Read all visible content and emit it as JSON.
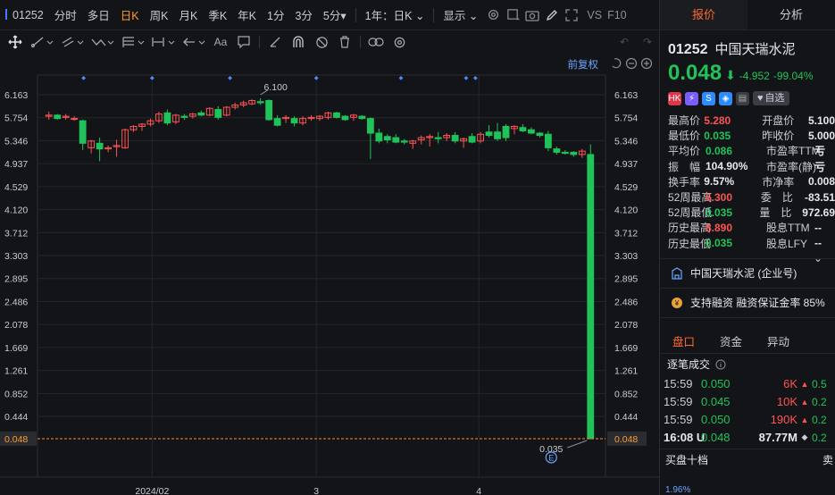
{
  "toolbar": {
    "code": "01252",
    "periods": [
      "分时",
      "多日",
      "日K",
      "周K",
      "月K",
      "季K",
      "年K",
      "1分",
      "3分",
      "5分▾"
    ],
    "active_period": "日K",
    "range": "1年：日K",
    "display": "显示",
    "vs": "VS",
    "f10": "F10"
  },
  "drawing_toolbar": {
    "icons": [
      "crosshair-icon",
      "line-tool-icon",
      "channel-tool-icon",
      "wave-tool-icon",
      "fib-tool-icon",
      "measure-tool-icon",
      "arrow-tool-icon",
      "text-tool-icon",
      "note-tool-icon",
      "ruler-tool-icon",
      "magnet-icon",
      "hide-icon",
      "trash-icon",
      "link-icon",
      "settings-icon"
    ],
    "text_tool_label": "Aa"
  },
  "chart": {
    "adjust_label": "前复权",
    "y_ticks": [
      "6.163",
      "5.754",
      "5.346",
      "4.937",
      "4.529",
      "4.120",
      "3.712",
      "3.303",
      "2.895",
      "2.486",
      "2.078",
      "1.669",
      "1.261",
      "0.852",
      "0.444"
    ],
    "current_price_label": "0.048",
    "max_label": "6.100",
    "min_label": "0.035",
    "x_labels": [
      "2024/02",
      "3",
      "4"
    ],
    "event_marker": "E",
    "colors": {
      "up": "#ff5353",
      "down": "#1fc35a",
      "grid": "#24262b",
      "axis_text": "#c9cdd4",
      "price_line": "#ff8a3a"
    }
  },
  "chart_data": {
    "type": "candlestick",
    "ylim": [
      0.0,
      6.35
    ],
    "y_ticks": [
      6.163,
      5.754,
      5.346,
      4.937,
      4.529,
      4.12,
      3.712,
      3.303,
      2.895,
      2.486,
      2.078,
      1.669,
      1.261,
      0.852,
      0.444
    ],
    "max": 6.1,
    "min": 0.035,
    "last": 0.048,
    "x_labels": [
      "2024/02",
      "3",
      "4"
    ],
    "candles": [
      {
        "o": 5.78,
        "h": 5.86,
        "l": 5.72,
        "c": 5.8
      },
      {
        "o": 5.8,
        "h": 5.82,
        "l": 5.72,
        "c": 5.74
      },
      {
        "o": 5.76,
        "h": 5.82,
        "l": 5.72,
        "c": 5.78
      },
      {
        "o": 5.74,
        "h": 5.78,
        "l": 5.7,
        "c": 5.74
      },
      {
        "o": 5.7,
        "h": 5.72,
        "l": 5.18,
        "c": 5.3
      },
      {
        "o": 5.22,
        "h": 5.36,
        "l": 5.12,
        "c": 5.34
      },
      {
        "o": 5.3,
        "h": 5.4,
        "l": 4.98,
        "c": 5.2
      },
      {
        "o": 5.2,
        "h": 5.26,
        "l": 5.14,
        "c": 5.22
      },
      {
        "o": 5.24,
        "h": 5.36,
        "l": 5.06,
        "c": 5.26
      },
      {
        "o": 5.22,
        "h": 5.56,
        "l": 5.2,
        "c": 5.54
      },
      {
        "o": 5.54,
        "h": 5.62,
        "l": 5.5,
        "c": 5.6
      },
      {
        "o": 5.6,
        "h": 5.66,
        "l": 5.52,
        "c": 5.64
      },
      {
        "o": 5.64,
        "h": 5.74,
        "l": 5.6,
        "c": 5.7
      },
      {
        "o": 5.7,
        "h": 5.86,
        "l": 5.66,
        "c": 5.82
      },
      {
        "o": 5.84,
        "h": 5.9,
        "l": 5.62,
        "c": 5.66
      },
      {
        "o": 5.68,
        "h": 5.82,
        "l": 5.64,
        "c": 5.8
      },
      {
        "o": 5.78,
        "h": 5.82,
        "l": 5.72,
        "c": 5.76
      },
      {
        "o": 5.78,
        "h": 5.84,
        "l": 5.74,
        "c": 5.82
      },
      {
        "o": 5.84,
        "h": 5.88,
        "l": 5.78,
        "c": 5.8
      },
      {
        "o": 5.8,
        "h": 5.94,
        "l": 5.78,
        "c": 5.92
      },
      {
        "o": 5.9,
        "h": 5.96,
        "l": 5.72,
        "c": 5.76
      },
      {
        "o": 5.8,
        "h": 5.96,
        "l": 5.78,
        "c": 5.94
      },
      {
        "o": 5.94,
        "h": 6.02,
        "l": 5.9,
        "c": 5.98
      },
      {
        "o": 5.98,
        "h": 6.06,
        "l": 5.94,
        "c": 6.02
      },
      {
        "o": 6.0,
        "h": 6.08,
        "l": 5.98,
        "c": 6.06
      },
      {
        "o": 6.04,
        "h": 6.1,
        "l": 5.98,
        "c": 6.02
      },
      {
        "o": 6.06,
        "h": 6.08,
        "l": 5.7,
        "c": 5.72
      },
      {
        "o": 5.74,
        "h": 5.8,
        "l": 5.6,
        "c": 5.62
      },
      {
        "o": 5.74,
        "h": 5.8,
        "l": 5.66,
        "c": 5.76
      },
      {
        "o": 5.74,
        "h": 5.78,
        "l": 5.6,
        "c": 5.66
      },
      {
        "o": 5.66,
        "h": 5.78,
        "l": 5.62,
        "c": 5.74
      },
      {
        "o": 5.74,
        "h": 5.8,
        "l": 5.7,
        "c": 5.76
      },
      {
        "o": 5.74,
        "h": 5.8,
        "l": 5.7,
        "c": 5.78
      },
      {
        "o": 5.76,
        "h": 5.86,
        "l": 5.72,
        "c": 5.84
      },
      {
        "o": 5.84,
        "h": 5.86,
        "l": 5.74,
        "c": 5.76
      },
      {
        "o": 5.78,
        "h": 5.8,
        "l": 5.7,
        "c": 5.72
      },
      {
        "o": 5.76,
        "h": 5.82,
        "l": 5.7,
        "c": 5.8
      },
      {
        "o": 5.78,
        "h": 5.8,
        "l": 5.72,
        "c": 5.74
      },
      {
        "o": 5.74,
        "h": 5.76,
        "l": 5.02,
        "c": 5.48
      },
      {
        "o": 5.48,
        "h": 5.56,
        "l": 5.3,
        "c": 5.34
      },
      {
        "o": 5.42,
        "h": 5.46,
        "l": 5.3,
        "c": 5.36
      },
      {
        "o": 5.4,
        "h": 5.46,
        "l": 5.3,
        "c": 5.32
      },
      {
        "o": 5.34,
        "h": 5.38,
        "l": 5.28,
        "c": 5.32
      },
      {
        "o": 5.3,
        "h": 5.36,
        "l": 5.2,
        "c": 5.34
      },
      {
        "o": 5.36,
        "h": 5.44,
        "l": 5.28,
        "c": 5.4
      },
      {
        "o": 5.4,
        "h": 5.46,
        "l": 5.24,
        "c": 5.42
      },
      {
        "o": 5.4,
        "h": 5.5,
        "l": 5.3,
        "c": 5.38
      },
      {
        "o": 5.4,
        "h": 5.48,
        "l": 5.34,
        "c": 5.44
      },
      {
        "o": 5.44,
        "h": 5.5,
        "l": 5.3,
        "c": 5.34
      },
      {
        "o": 5.34,
        "h": 5.4,
        "l": 5.22,
        "c": 5.38
      },
      {
        "o": 5.42,
        "h": 5.48,
        "l": 5.3,
        "c": 5.32
      },
      {
        "o": 5.34,
        "h": 5.5,
        "l": 5.3,
        "c": 5.46
      },
      {
        "o": 5.5,
        "h": 5.62,
        "l": 5.4,
        "c": 5.44
      },
      {
        "o": 5.5,
        "h": 5.66,
        "l": 5.34,
        "c": 5.38
      },
      {
        "o": 5.6,
        "h": 5.64,
        "l": 5.34,
        "c": 5.4
      },
      {
        "o": 5.56,
        "h": 5.62,
        "l": 5.46,
        "c": 5.6
      },
      {
        "o": 5.58,
        "h": 5.64,
        "l": 5.5,
        "c": 5.52
      },
      {
        "o": 5.54,
        "h": 5.58,
        "l": 5.46,
        "c": 5.48
      },
      {
        "o": 5.48,
        "h": 5.5,
        "l": 5.4,
        "c": 5.44
      },
      {
        "o": 5.46,
        "h": 5.52,
        "l": 5.16,
        "c": 5.22
      },
      {
        "o": 5.2,
        "h": 5.24,
        "l": 5.1,
        "c": 5.14
      },
      {
        "o": 5.14,
        "h": 5.18,
        "l": 5.1,
        "c": 5.12
      },
      {
        "o": 5.14,
        "h": 5.16,
        "l": 5.06,
        "c": 5.1
      },
      {
        "o": 5.1,
        "h": 5.2,
        "l": 5.04,
        "c": 5.16
      },
      {
        "o": 5.1,
        "h": 5.28,
        "l": 0.035,
        "c": 0.048
      }
    ]
  },
  "right": {
    "tabs": [
      "报价",
      "分析"
    ],
    "active_tab": "报价",
    "code": "01252",
    "name": "中国天瑞水泥",
    "price": "0.048",
    "arrow": "⬇",
    "change": "-4.952",
    "change_pct": "-99.04%",
    "badges": [
      "HK",
      "⚡",
      "S",
      "◈",
      "▤"
    ],
    "fav_label": "自选",
    "stats": [
      {
        "k1": "最高价",
        "v1": "5.280",
        "c1": "red",
        "k2": "开盘价",
        "v2": "5.100",
        "c2": "red"
      },
      {
        "k1": "最低价",
        "v1": "0.035",
        "c1": "grn",
        "k2": "昨收价",
        "v2": "5.000",
        "c2": "wht"
      },
      {
        "k1": "平均价",
        "v1": "0.086",
        "c1": "grn",
        "k2": "市盈率TTM",
        "v2": "亏",
        "c2": "wht"
      },
      {
        "k1": "振　幅",
        "v1": "104.90%",
        "c1": "wht",
        "k2": "市盈率(静)",
        "v2": "亏",
        "c2": "wht"
      },
      {
        "k1": "换手率",
        "v1": "9.57%",
        "c1": "wht",
        "k2": "市净率",
        "v2": "0.008",
        "c2": "wht"
      },
      {
        "k1": "52周最高",
        "v1": "6.300",
        "c1": "red",
        "k2": "委　比",
        "v2": "-83.51",
        "c2": "wht"
      },
      {
        "k1": "52周最低",
        "v1": "0.035",
        "c1": "grn",
        "k2": "量　比",
        "v2": "972.69",
        "c2": "wht"
      },
      {
        "k1": "历史最高",
        "v1": "8.890",
        "c1": "red",
        "k2": "股息TTM",
        "v2": "--",
        "c2": "wht"
      },
      {
        "k1": "历史最低",
        "v1": "0.035",
        "c1": "grn",
        "k2": "股息LFY",
        "v2": "--",
        "c2": "wht"
      }
    ],
    "enterprise": "中国天瑞水泥 (企业号)",
    "margin": "支持融资 融资保证金率 85%",
    "sub_tabs": [
      "盘口",
      "资金",
      "异动"
    ],
    "active_sub_tab": "盘口",
    "ticks_title": "逐笔成交",
    "ticks": [
      {
        "t": "15:59",
        "p": "0.050",
        "v": "6K",
        "d": "▲",
        "a": "0.5"
      },
      {
        "t": "15:59",
        "p": "0.045",
        "v": "10K",
        "d": "▲",
        "a": "0.2"
      },
      {
        "t": "15:59",
        "p": "0.050",
        "v": "190K",
        "d": "▲",
        "a": "0.2"
      },
      {
        "t": "16:08 U",
        "p": "0.048",
        "v": "87.77M",
        "d": "◆",
        "a": "0.2"
      }
    ],
    "ten_label": "买盘十档",
    "ten_label_right": "卖",
    "ratio": "1.96%"
  }
}
